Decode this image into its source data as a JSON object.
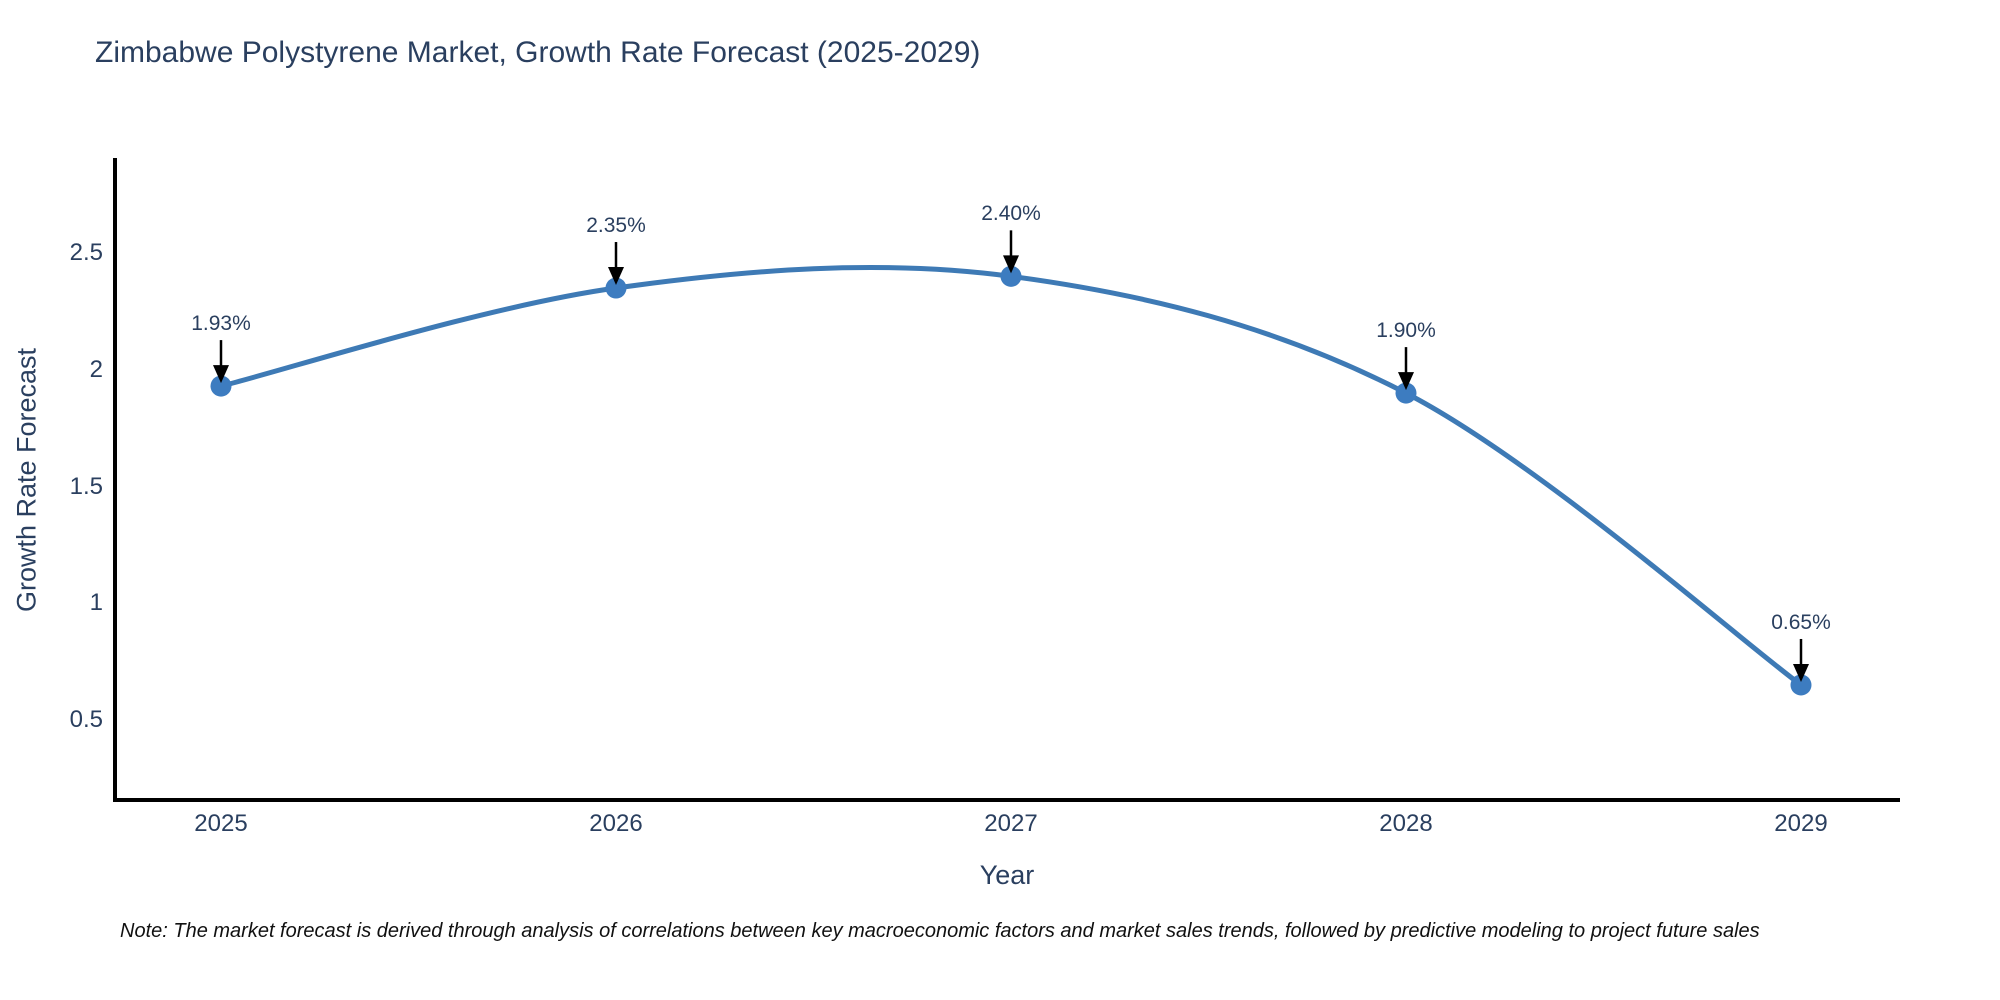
{
  "page": {
    "background": "#ffffff"
  },
  "chart_data": {
    "type": "line",
    "title": "Zimbabwe Polystyrene Market, Growth Rate Forecast (2025-2029)",
    "xlabel": "Year",
    "ylabel": "Growth Rate Forecast",
    "categories": [
      "2025",
      "2026",
      "2027",
      "2028",
      "2029"
    ],
    "series": [
      {
        "name": "Growth Rate Forecast",
        "values": [
          1.93,
          2.35,
          2.4,
          1.9,
          0.65
        ],
        "point_labels": [
          "1.93%",
          "2.35%",
          "2.40%",
          "1.90%",
          "0.65%"
        ]
      }
    ],
    "ytick_labels": [
      "0.5",
      "1",
      "1.5",
      "2",
      "2.5"
    ],
    "ytick_values": [
      0.5,
      1,
      1.5,
      2,
      2.5
    ],
    "ylim": [
      0.16,
      2.93
    ],
    "xlim_padding_categories": [
      -0.27,
      0.25
    ],
    "line_shape": "spline",
    "grid": false,
    "legend_position": "none",
    "annotations_have_arrows": true,
    "note": "Note: The market forecast is derived through analysis of correlations between key macroeconomic factors and market sales trends, followed by predictive modeling to project future sales",
    "colors": {
      "line": "#3e7ab5",
      "marker": "#3d7cc0",
      "axis_line": "#000000",
      "text": "#2a3f5f",
      "annotation_arrow": "#000000",
      "note_text": "#111111",
      "background": "#ffffff"
    }
  }
}
